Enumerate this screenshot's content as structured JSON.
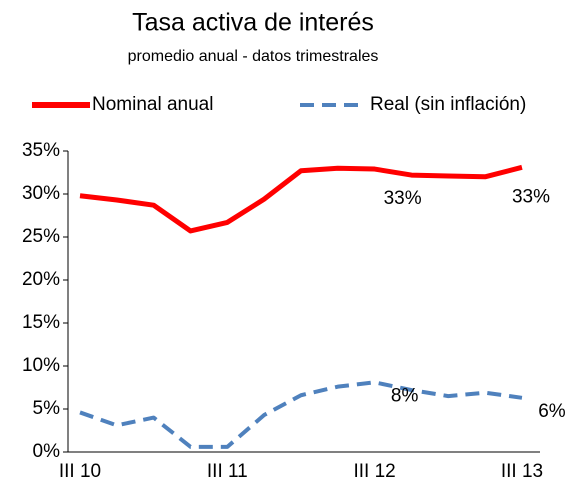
{
  "chart_data": {
    "type": "line",
    "title": "Tasa activa de interés",
    "subtitle": "promedio anual - datos trimestrales",
    "categories": [
      "III 10",
      null,
      null,
      null,
      "III 11",
      null,
      null,
      null,
      "III 12",
      null,
      null,
      null,
      "III 13"
    ],
    "series": [
      {
        "name": "Nominal anual",
        "color": "#ff0000",
        "dash": false,
        "values": [
          29.8,
          29.3,
          28.7,
          25.7,
          26.7,
          29.4,
          32.7,
          33.0,
          32.9,
          32.2,
          32.1,
          32.0,
          33.1
        ],
        "value_labels": [
          null,
          null,
          null,
          null,
          null,
          null,
          null,
          null,
          "33%",
          null,
          null,
          null,
          "33%"
        ]
      },
      {
        "name": "Real (sin inflación)",
        "color": "#4f81bd",
        "dash": true,
        "values": [
          4.6,
          3.1,
          4.0,
          0.6,
          0.6,
          4.3,
          6.6,
          7.6,
          8.1,
          7.2,
          6.5,
          6.9,
          6.3
        ],
        "value_labels": [
          null,
          null,
          null,
          null,
          null,
          null,
          null,
          null,
          "8%",
          null,
          null,
          null,
          "6%"
        ]
      }
    ],
    "ylim": [
      0,
      35
    ],
    "yticks": [
      {
        "value": 0,
        "label": "0%"
      },
      {
        "value": 5,
        "label": "5%"
      },
      {
        "value": 10,
        "label": "10%"
      },
      {
        "value": 15,
        "label": "15%"
      },
      {
        "value": 20,
        "label": "20%"
      },
      {
        "value": 25,
        "label": "25%"
      },
      {
        "value": 30,
        "label": "30%"
      },
      {
        "value": 35,
        "label": "35%"
      }
    ],
    "legend": "top"
  }
}
